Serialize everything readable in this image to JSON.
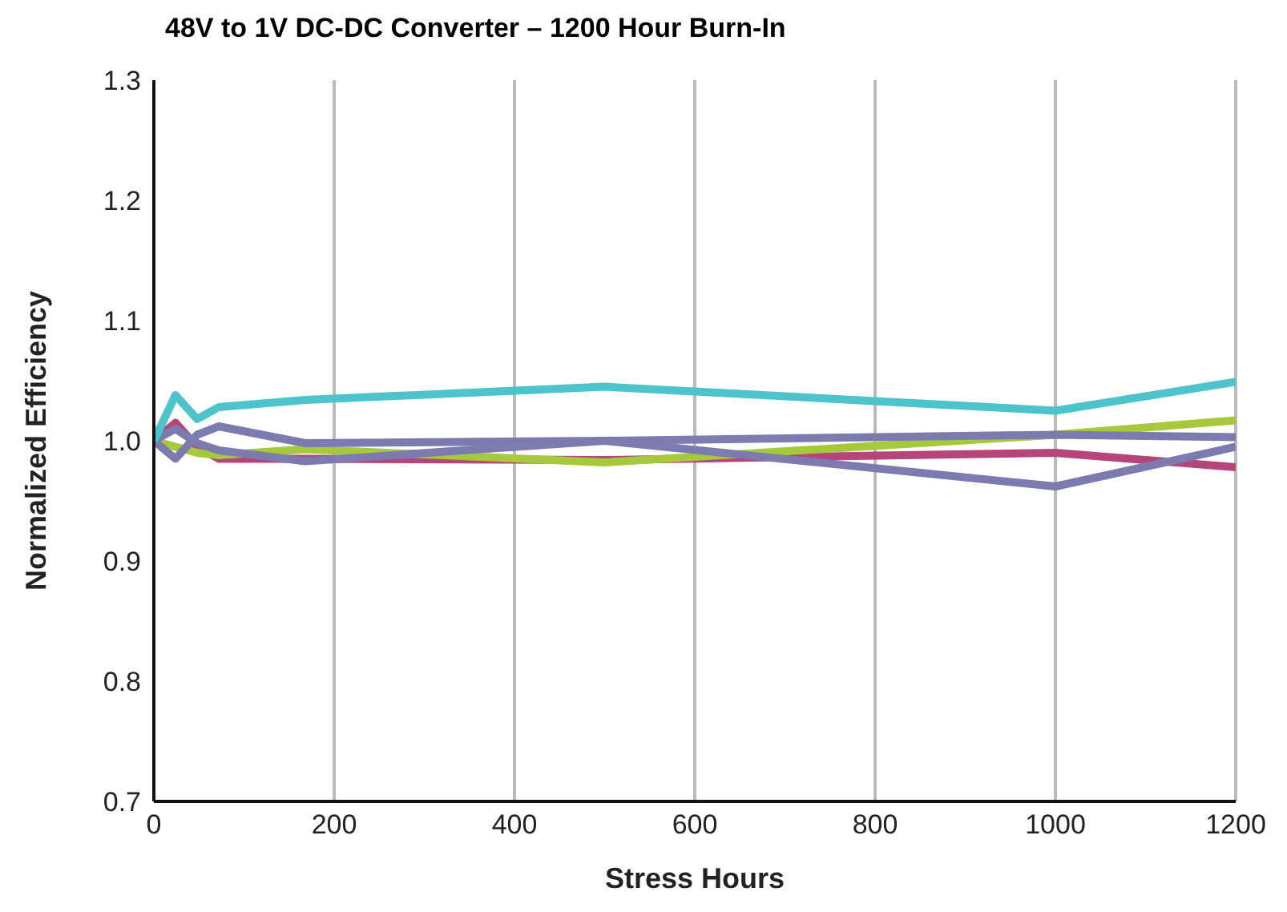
{
  "chart_data": {
    "type": "line",
    "title": "48V to 1V DC-DC Converter – 1200 Hour Burn-In",
    "xlabel": "Stress Hours",
    "ylabel": "Normalized Efficiency",
    "x": [
      0,
      24,
      48,
      72,
      168,
      500,
      1000,
      1200
    ],
    "series": [
      {
        "color": "#b5457a",
        "values": [
          1.0,
          1.015,
          0.995,
          0.985,
          0.985,
          0.984,
          0.99,
          0.978
        ]
      },
      {
        "color": "#a5c93a",
        "values": [
          1.0,
          0.995,
          0.99,
          0.988,
          0.993,
          0.982,
          1.005,
          1.017
        ]
      },
      {
        "color": "#7b7bb0",
        "values": [
          1.0,
          0.985,
          1.005,
          1.012,
          0.998,
          1.0,
          1.005,
          1.003
        ]
      },
      {
        "color": "#7b7bb0",
        "values": [
          1.0,
          1.01,
          0.998,
          0.992,
          0.983,
          1.0,
          0.962,
          0.995
        ]
      },
      {
        "color": "#4dc4cb",
        "values": [
          1.0,
          1.038,
          1.018,
          1.028,
          1.034,
          1.045,
          1.025,
          1.049
        ]
      }
    ],
    "xlim": [
      0,
      1200
    ],
    "xticks": [
      0,
      200,
      400,
      600,
      800,
      1000,
      1200
    ],
    "ylim": [
      0.7,
      1.3
    ],
    "yticks": [
      0.7,
      0.8,
      0.9,
      {
        "value": 1,
        "label": "1.0"
      },
      1.1,
      1.2,
      1.3
    ],
    "grid": "x",
    "marker": "none",
    "line_style": "solid"
  }
}
